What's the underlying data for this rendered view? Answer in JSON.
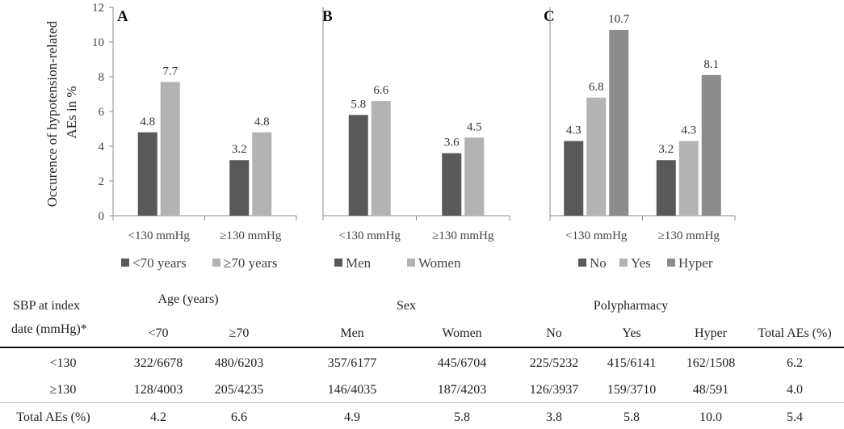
{
  "y_axis_label_line1": "Occurence of hypotension-related",
  "y_axis_label_line2": "AEs in %",
  "colors": {
    "dark": "#595959",
    "light": "#b3b3b3",
    "mid": "#8c8c8c",
    "axis": "#8c8c8c"
  },
  "chart_data": [
    {
      "type": "bar",
      "panel": "A",
      "categories": [
        "<130 mmHg",
        "≥130 mmHg"
      ],
      "series": [
        {
          "name": "<70 years",
          "values": [
            4.8,
            3.2
          ],
          "color": "#595959"
        },
        {
          "name": "≥70 years",
          "values": [
            7.7,
            4.8
          ],
          "color": "#b3b3b3"
        }
      ],
      "ylabel": "Occurence of hypotension-related AEs in %",
      "ylim": [
        0,
        12
      ],
      "yticks": [
        0,
        2,
        4,
        6,
        8,
        10,
        12
      ],
      "legend": "bottom"
    },
    {
      "type": "bar",
      "panel": "B",
      "categories": [
        "<130 mmHg",
        "≥130 mmHg"
      ],
      "series": [
        {
          "name": "Men",
          "values": [
            5.8,
            3.6
          ],
          "color": "#595959"
        },
        {
          "name": "Women",
          "values": [
            6.6,
            4.5
          ],
          "color": "#b3b3b3"
        }
      ],
      "ylim": [
        0,
        12
      ],
      "legend": "bottom"
    },
    {
      "type": "bar",
      "panel": "C",
      "categories": [
        "<130 mmHg",
        "≥130 mmHg"
      ],
      "series": [
        {
          "name": "No",
          "values": [
            4.3,
            3.2
          ],
          "color": "#595959"
        },
        {
          "name": "Yes",
          "values": [
            6.8,
            4.3
          ],
          "color": "#b3b3b3"
        },
        {
          "name": "Hyper",
          "values": [
            10.7,
            8.1
          ],
          "color": "#8c8c8c"
        }
      ],
      "ylim": [
        0,
        12
      ],
      "legend": "bottom"
    }
  ],
  "table": {
    "header": {
      "sbp_line1": "SBP at index",
      "sbp_line2": "date (mmHg)*",
      "group_age": "Age (years)",
      "group_sex": "Sex",
      "group_poly": "Polypharmacy",
      "sub": [
        "<70",
        "≥70",
        "Men",
        "Women",
        "No",
        "Yes",
        "Hyper"
      ],
      "total": "Total AEs (%)"
    },
    "rows": [
      {
        "label": "<130",
        "cells": [
          "322/6678",
          "480/6203",
          "357/6177",
          "445/6704",
          "225/5232",
          "415/6141",
          "162/1508"
        ],
        "total": "6.2"
      },
      {
        "label": "≥130",
        "cells": [
          "128/4003",
          "205/4235",
          "146/4035",
          "187/4203",
          "126/3937",
          "159/3710",
          "48/591"
        ],
        "total": "4.0"
      }
    ],
    "footer": {
      "label": "Total AEs (%)",
      "cells": [
        "4.2",
        "6.6",
        "4.9",
        "5.8",
        "3.8",
        "5.8",
        "10.0"
      ],
      "total": "5.4"
    }
  }
}
